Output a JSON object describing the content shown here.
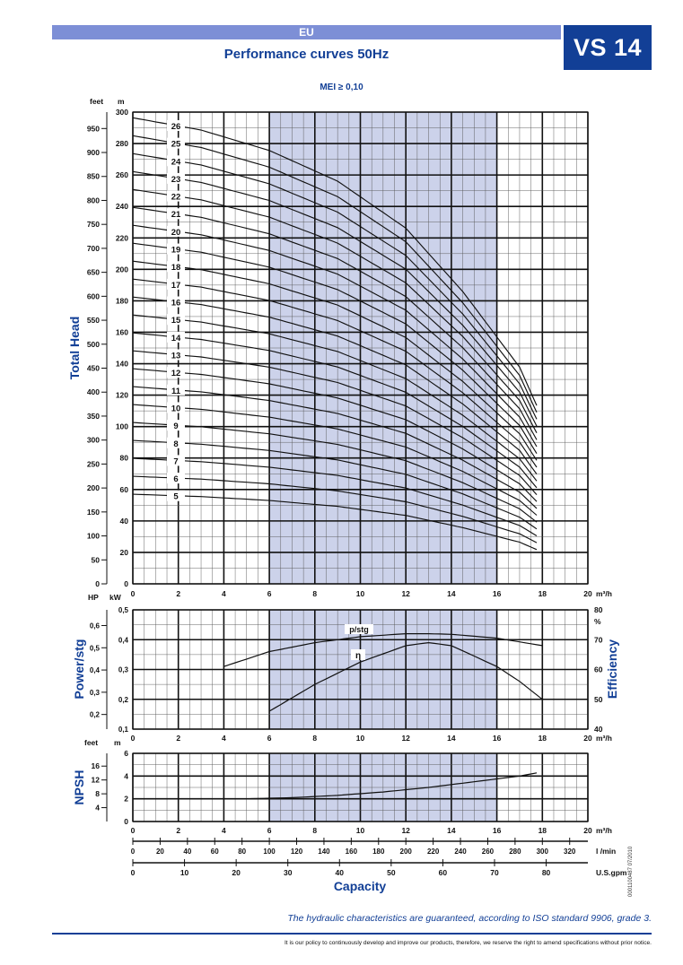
{
  "header": {
    "region": "EU",
    "model": "VS 14",
    "title": "Performance curves 50Hz",
    "mei": "MEI ≥ 0,10"
  },
  "footer": {
    "guarantee": "The hydraulic characteristics are guaranteed, according to ISO standard 9906, grade 3.",
    "policy": "It is our policy to continuously develop and improve our products, therefore, we reserve the right to amend specifications without prior notice.",
    "doc_number": "0001100487   07/2010"
  },
  "chart_data": [
    {
      "id": "head",
      "type": "line",
      "ylabel": "Total Head",
      "unit_left": "feet",
      "unit_right": "m",
      "x_unit": "m³/h",
      "xlim": [
        0,
        20
      ],
      "ylim": [
        0,
        300
      ],
      "y_ticks_m": [
        0,
        20,
        40,
        60,
        80,
        100,
        120,
        140,
        160,
        180,
        200,
        220,
        240,
        260,
        280,
        300
      ],
      "y_ticks_feet": [
        0,
        50,
        100,
        150,
        200,
        250,
        300,
        350,
        400,
        450,
        500,
        550,
        600,
        650,
        700,
        750,
        800,
        850,
        900,
        950
      ],
      "x_ticks": [
        0,
        2,
        4,
        6,
        8,
        10,
        12,
        14,
        16,
        18,
        20
      ],
      "recommended_range": [
        6,
        16
      ],
      "stage_head_per_stage_m": [
        11.4,
        11.1,
        10.6,
        9.85,
        8.7,
        7.15,
        5.3,
        4.3
      ],
      "stage_head_flows": [
        0,
        3,
        6,
        9,
        12,
        14.5,
        17,
        17.8
      ],
      "series": [
        {
          "name": "5",
          "stages": 5
        },
        {
          "name": "6",
          "stages": 6
        },
        {
          "name": "7",
          "stages": 7
        },
        {
          "name": "8",
          "stages": 8
        },
        {
          "name": "9",
          "stages": 9
        },
        {
          "name": "10",
          "stages": 10
        },
        {
          "name": "11",
          "stages": 11
        },
        {
          "name": "12",
          "stages": 12
        },
        {
          "name": "13",
          "stages": 13
        },
        {
          "name": "14",
          "stages": 14
        },
        {
          "name": "15",
          "stages": 15
        },
        {
          "name": "16",
          "stages": 16
        },
        {
          "name": "17",
          "stages": 17
        },
        {
          "name": "18",
          "stages": 18
        },
        {
          "name": "19",
          "stages": 19
        },
        {
          "name": "20",
          "stages": 20
        },
        {
          "name": "21",
          "stages": 21
        },
        {
          "name": "22",
          "stages": 22
        },
        {
          "name": "23",
          "stages": 23
        },
        {
          "name": "24",
          "stages": 24
        },
        {
          "name": "25",
          "stages": 25
        },
        {
          "name": "26",
          "stages": 26
        }
      ]
    },
    {
      "id": "power",
      "type": "line",
      "ylabel": "Power/stg",
      "ylabel_right": "Efficiency",
      "unit_left": "HP",
      "unit_right_kw": "kW",
      "unit_eff": "%",
      "x_unit": "m³/h",
      "xlim": [
        0,
        20
      ],
      "ylim_kw": [
        0.1,
        0.5
      ],
      "y_ticks_kw": [
        "0,1",
        "0,2",
        "0,3",
        "0,4",
        "0,5"
      ],
      "y_ticks_hp": [
        "0,2",
        "0,3",
        "0,4",
        "0,5",
        "0,6"
      ],
      "y_ticks_eff": [
        40,
        50,
        60,
        70,
        80
      ],
      "x_ticks": [
        0,
        2,
        4,
        6,
        8,
        10,
        12,
        14,
        16,
        18,
        20
      ],
      "series": [
        {
          "name": "p/stg",
          "x": [
            4,
            6,
            8,
            10,
            12,
            13,
            14,
            16,
            18
          ],
          "y_kw": [
            0.31,
            0.36,
            0.39,
            0.41,
            0.42,
            0.42,
            0.418,
            0.405,
            0.38
          ]
        },
        {
          "name": "η",
          "x": [
            6,
            8,
            10,
            12,
            13,
            14,
            16,
            17,
            18
          ],
          "y_pct": [
            46,
            55,
            62.5,
            68,
            69,
            68,
            61,
            56,
            50
          ]
        }
      ]
    },
    {
      "id": "npsh",
      "type": "line",
      "ylabel": "NPSH",
      "unit_left": "feet",
      "unit_right": "m",
      "x_unit": "m³/h",
      "xlim": [
        0,
        20
      ],
      "ylim": [
        0,
        6
      ],
      "y_ticks_m": [
        0,
        2,
        4,
        6
      ],
      "y_ticks_feet": [
        4,
        8,
        12,
        16
      ],
      "x_ticks": [
        0,
        2,
        4,
        6,
        8,
        10,
        12,
        14,
        16,
        18,
        20
      ],
      "series": [
        {
          "name": "NPSH",
          "x": [
            5,
            7,
            9,
            11,
            13,
            15,
            17,
            17.8
          ],
          "y": [
            2.0,
            2.1,
            2.3,
            2.6,
            3.0,
            3.5,
            4.0,
            4.3
          ]
        }
      ]
    }
  ],
  "capacity_axes": {
    "label": "Capacity",
    "m3h": {
      "unit": "m³/h",
      "ticks": [
        0,
        2,
        4,
        6,
        8,
        10,
        12,
        14,
        16,
        18,
        20
      ]
    },
    "lmin": {
      "unit": "l /min",
      "ticks": [
        0,
        20,
        40,
        60,
        80,
        100,
        120,
        140,
        160,
        180,
        200,
        220,
        240,
        260,
        280,
        300,
        320
      ]
    },
    "usgpm": {
      "unit": "U.S.gpm",
      "ticks": [
        0,
        10,
        20,
        30,
        40,
        50,
        60,
        70,
        80
      ]
    }
  },
  "colors": {
    "brand": "#123f96",
    "band": "#ccd2ea",
    "accent": "#7d8fd6"
  }
}
